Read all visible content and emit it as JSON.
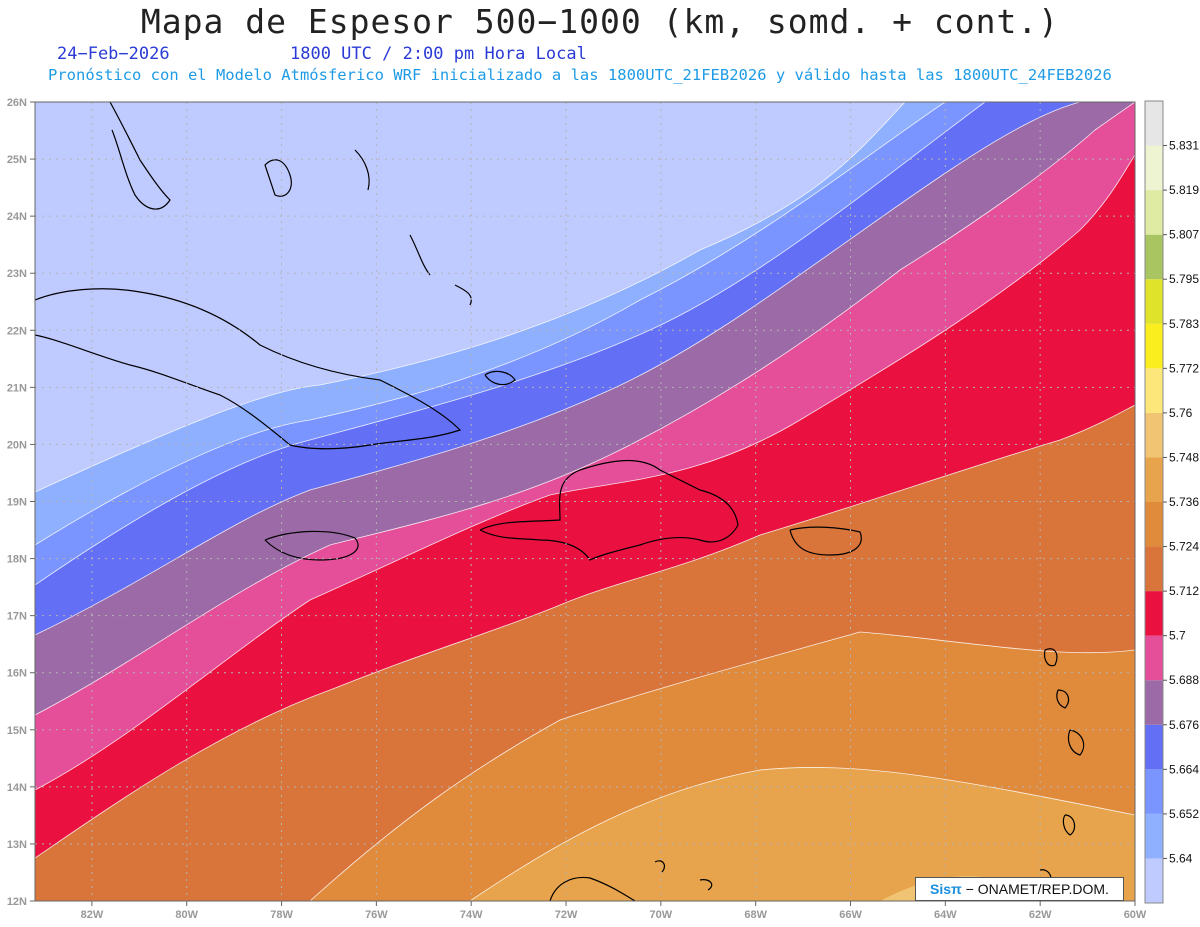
{
  "header": {
    "title": "Mapa de Espesor 500−1000 (km, somd. + cont.)",
    "date": "24−Feb−2026",
    "time": "1800 UTC / 2:00 pm Hora Local",
    "subtitle": "Pronóstico con el Modelo Atmósferico WRF inicializado a las 1800UTC_21FEB2026 y válido hasta las  1800UTC_24FEB2026"
  },
  "map": {
    "lon_range": [
      -83.2,
      -60
    ],
    "lat_range": [
      12,
      26
    ],
    "lon_ticks": [
      "82W",
      "80W",
      "78W",
      "76W",
      "74W",
      "72W",
      "70W",
      "68W",
      "66W",
      "64W",
      "62W",
      "60W"
    ],
    "lat_ticks": [
      "12N",
      "13N",
      "14N",
      "15N",
      "16N",
      "17N",
      "18N",
      "19N",
      "20N",
      "21N",
      "22N",
      "23N",
      "24N",
      "25N",
      "26N"
    ],
    "grid": "dotted"
  },
  "colorbar": {
    "labels": [
      "5.64",
      "5.652",
      "5.664",
      "5.676",
      "5.688",
      "5.7",
      "5.712",
      "5.724",
      "5.736",
      "5.748",
      "5.76",
      "5.772",
      "5.783",
      "5.795",
      "5.807",
      "5.819",
      "5.831"
    ],
    "colors": [
      "#bfcaff",
      "#8fb0ff",
      "#7a95ff",
      "#6370f5",
      "#9c6aa6",
      "#e54f9a",
      "#ea1140",
      "#d9743a",
      "#e08a3c",
      "#e8a44c",
      "#f0c472",
      "#fde77a",
      "#fbee1f",
      "#dfe32a",
      "#a8c562",
      "#dfeaa3",
      "#eef3d1",
      "#e6e6e6"
    ]
  },
  "credit": {
    "brand": "Sisπ",
    "text": "− ONAMET/REP.DOM."
  }
}
